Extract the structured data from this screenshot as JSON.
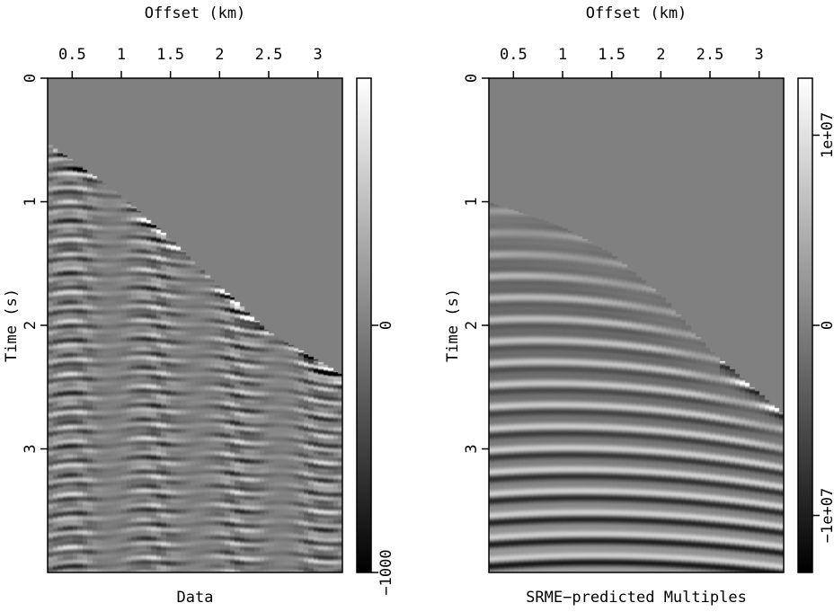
{
  "chart_data": [
    {
      "type": "heatmap",
      "title": "Data",
      "xlabel": "Offset (km)",
      "ylabel": "Time (s)",
      "x_ticks": [
        "0.5",
        "1",
        "1.5",
        "2",
        "2.5",
        "3"
      ],
      "y_ticks": [
        "0",
        "1",
        "2",
        "3"
      ],
      "xlim": [
        0.25,
        3.25
      ],
      "ylim": [
        0,
        4.0
      ],
      "colorbar": {
        "ticks": [
          "0",
          "−1000"
        ],
        "range": [
          -1000,
          1000
        ],
        "colormap": "grayscale"
      },
      "first_arrival": [
        [
          0.25,
          0.52
        ],
        [
          1.0,
          0.95
        ],
        [
          1.5,
          1.3
        ],
        [
          2.0,
          1.68
        ],
        [
          2.5,
          2.05
        ],
        [
          3.25,
          2.4
        ]
      ]
    },
    {
      "type": "heatmap",
      "title": "SRME−predicted Multiples",
      "xlabel": "Offset (km)",
      "ylabel": "Time (s)",
      "x_ticks": [
        "0.5",
        "1",
        "1.5",
        "2",
        "2.5",
        "3"
      ],
      "y_ticks": [
        "0",
        "1",
        "2",
        "3"
      ],
      "xlim": [
        0.25,
        3.25
      ],
      "ylim": [
        0,
        4.0
      ],
      "colorbar": {
        "ticks": [
          "1e+07",
          "0",
          "−1e+07"
        ],
        "range": [
          -13000000.0,
          13000000.0
        ],
        "colormap": "grayscale"
      },
      "first_arrival": [
        [
          0.25,
          1.0
        ],
        [
          1.0,
          1.2
        ],
        [
          1.5,
          1.42
        ],
        [
          2.0,
          1.75
        ],
        [
          2.5,
          2.2
        ],
        [
          3.25,
          2.72
        ]
      ]
    }
  ]
}
